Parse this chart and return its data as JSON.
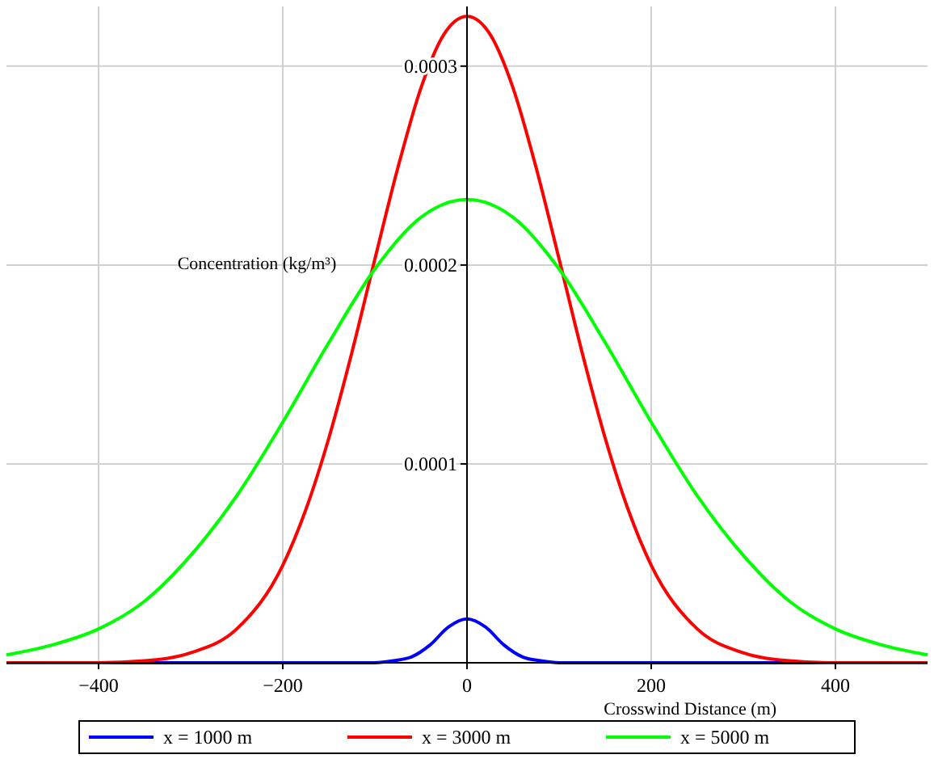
{
  "chart_data": {
    "type": "line",
    "xlabel": "Crosswind Distance (m)",
    "ylabel": "Concentration (kg/m³)",
    "xlim": [
      -500,
      500
    ],
    "xticks": [
      {
        "value": -400,
        "label": "−400"
      },
      {
        "value": -200,
        "label": "−200"
      },
      0,
      200,
      400
    ],
    "ylim": [
      0,
      0.00033
    ],
    "yticks": [
      {
        "value": 0,
        "label": null
      },
      0.0001,
      0.0002,
      0.0003
    ],
    "grid": true,
    "legend": "bottom",
    "marker": "none",
    "line_style": "solid",
    "series": [
      {
        "name": "x = 1000 m",
        "color": "#0000ff",
        "x": [
          -500,
          -100,
          -80,
          -60,
          -40,
          -20,
          0,
          20,
          40,
          60,
          80,
          100,
          500
        ],
        "values": [
          0,
          0,
          1e-06,
          3e-06,
          9e-06,
          1.8e-05,
          2.2e-05,
          1.8e-05,
          9e-06,
          3e-06,
          1e-06,
          0,
          0
        ]
      },
      {
        "name": "x = 3000 m",
        "color": "#ff0000",
        "x": [
          -500,
          -450,
          -400,
          -350,
          -300,
          -250,
          -200,
          -175,
          -150,
          -125,
          -100,
          -75,
          -50,
          -25,
          0,
          25,
          50,
          75,
          100,
          125,
          150,
          175,
          200,
          250,
          300,
          350,
          400,
          450,
          500
        ],
        "values": [
          0,
          0,
          0,
          1e-06,
          5e-06,
          1.7e-05,
          4.9e-05,
          7.7e-05,
          0.000113,
          0.000156,
          0.000203,
          0.000249,
          0.000289,
          0.000316,
          0.000325,
          0.000316,
          0.000289,
          0.000249,
          0.000203,
          0.000156,
          0.000113,
          7.7e-05,
          4.9e-05,
          1.7e-05,
          5e-06,
          1e-06,
          0,
          0,
          0
        ]
      },
      {
        "name": "x = 5000 m",
        "color": "#00ff00",
        "x": [
          -500,
          -450,
          -400,
          -350,
          -300,
          -250,
          -200,
          -150,
          -100,
          -50,
          0,
          50,
          100,
          150,
          200,
          250,
          300,
          350,
          400,
          450,
          500
        ],
        "values": [
          4e-06,
          9e-06,
          1.7e-05,
          3.1e-05,
          5.4e-05,
          8.4e-05,
          0.000121,
          0.000161,
          0.000198,
          0.000224,
          0.000233,
          0.000224,
          0.000198,
          0.000161,
          0.000121,
          8.4e-05,
          5.4e-05,
          3.1e-05,
          1.7e-05,
          9e-06,
          4e-06
        ]
      }
    ]
  }
}
